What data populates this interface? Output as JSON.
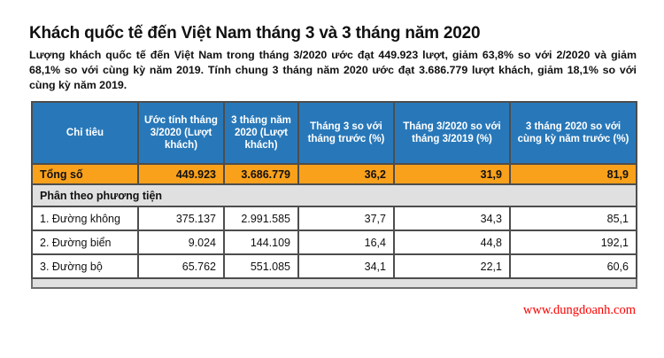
{
  "page": {
    "title": "Khách quốc tế đến Việt Nam tháng 3 và 3 tháng năm 2020",
    "summary": "Lượng khách quốc tế đến Việt Nam trong tháng 3/2020 ước đạt 449.923 lượt, giảm 63,8% so với 2/2020 và giảm 68,1% so với cùng kỳ năm 2019. Tính chung 3 tháng năm 2020 ước đạt 3.686.779 lượt khách, giảm 18,1% so với cùng kỳ năm 2019.",
    "website": "www.dungdoanh.com"
  },
  "table": {
    "headers": [
      "Chỉ tiêu",
      "Ước tính tháng 3/2020 (Lượt khách)",
      "3 tháng năm 2020 (Lượt khách)",
      "Tháng 3 so với tháng trước (%)",
      "Tháng 3/2020 so với tháng 3/2019 (%)",
      "3 tháng 2020 so với cùng kỳ năm trước (%)"
    ],
    "total_row": {
      "label": "Tổng số",
      "values": [
        "449.923",
        "3.686.779",
        "36,2",
        "31,9",
        "81,9"
      ]
    },
    "section_label": "Phân theo phương tiện",
    "rows": [
      {
        "label": "1. Đường không",
        "values": [
          "375.137",
          "2.991.585",
          "37,7",
          "34,3",
          "85,1"
        ]
      },
      {
        "label": "2. Đường biển",
        "values": [
          "9.024",
          "144.109",
          "16,4",
          "44,8",
          "192,1"
        ]
      },
      {
        "label": "3. Đường bộ",
        "values": [
          "65.762",
          "551.085",
          "34,1",
          "22,1",
          "60,6"
        ]
      }
    ]
  },
  "colors": {
    "header_bg": "#2878b9",
    "header_text": "#ffffff",
    "total_bg": "#f9a11b",
    "section_bg": "#e0e0e0",
    "grid_border": "#4d4d4d",
    "link_red": "#fe0000"
  }
}
